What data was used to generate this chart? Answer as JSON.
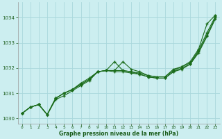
{
  "title": "Graphe pression niveau de la mer (hPa)",
  "bg_color": "#cceef0",
  "grid_color": "#aad8dc",
  "line_color": "#1a6b1a",
  "text_color": "#1a5c1a",
  "xlim": [
    -0.5,
    23.5
  ],
  "ylim": [
    1029.8,
    1034.6
  ],
  "yticks": [
    1030,
    1031,
    1032,
    1033,
    1034
  ],
  "xticks": [
    0,
    1,
    2,
    3,
    4,
    5,
    6,
    7,
    8,
    9,
    10,
    11,
    12,
    13,
    14,
    15,
    16,
    17,
    18,
    19,
    20,
    21,
    22,
    23
  ],
  "series": [
    [
      1030.2,
      1030.45,
      1030.55,
      1030.15,
      1030.75,
      1030.9,
      1031.1,
      1031.3,
      1031.5,
      1031.85,
      1031.9,
      1031.9,
      1032.25,
      1031.95,
      1031.85,
      1031.7,
      1031.65,
      1031.65,
      1031.95,
      1032.05,
      1032.25,
      1032.75,
      1033.75,
      1034.1
    ],
    [
      1030.2,
      1030.45,
      1030.55,
      1030.15,
      1030.8,
      1031.0,
      1031.15,
      1031.4,
      1031.6,
      1031.85,
      1031.9,
      1031.9,
      1031.9,
      1031.85,
      1031.8,
      1031.7,
      1031.65,
      1031.65,
      1031.9,
      1032.05,
      1032.2,
      1032.7,
      1033.4,
      1034.05
    ],
    [
      1030.2,
      1030.45,
      1030.55,
      1030.15,
      1030.8,
      1031.0,
      1031.15,
      1031.35,
      1031.55,
      1031.85,
      1031.9,
      1031.85,
      1031.85,
      1031.8,
      1031.75,
      1031.65,
      1031.6,
      1031.6,
      1031.85,
      1032.0,
      1032.15,
      1032.65,
      1033.3,
      1034.0
    ],
    [
      1030.2,
      1030.45,
      1030.55,
      1030.15,
      1030.8,
      1031.0,
      1031.15,
      1031.35,
      1031.55,
      1031.85,
      1031.9,
      1032.25,
      1031.9,
      1031.85,
      1031.75,
      1031.65,
      1031.6,
      1031.6,
      1031.85,
      1031.95,
      1032.15,
      1032.6,
      1033.25,
      1033.95
    ]
  ]
}
